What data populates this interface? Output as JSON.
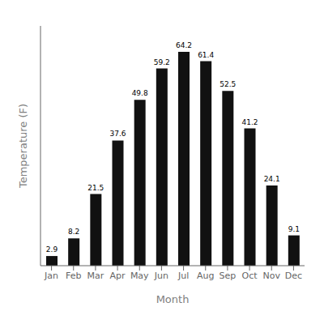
{
  "chart_data": {
    "type": "bar",
    "categories": [
      "Jan",
      "Feb",
      "Mar",
      "Apr",
      "May",
      "Jun",
      "Jul",
      "Aug",
      "Sep",
      "Oct",
      "Nov",
      "Dec"
    ],
    "values": [
      2.9,
      8.2,
      21.5,
      37.6,
      49.8,
      59.2,
      64.2,
      61.4,
      52.5,
      41.2,
      24.1,
      9.1
    ],
    "color": "#111111",
    "xlabel": "Month",
    "ylabel": "Temperature (F)",
    "ylim": [
      0,
      72
    ],
    "data_labels": true,
    "tick_labels": "x"
  }
}
